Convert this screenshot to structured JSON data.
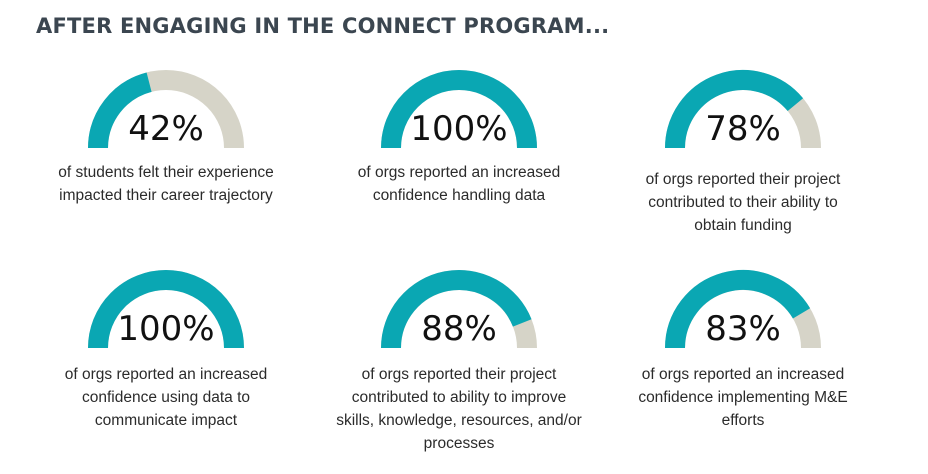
{
  "headline": "AFTER ENGAGING IN THE CONNECT PROGRAM...",
  "colors": {
    "filled": "#0aa7b3",
    "remaining": "#d6d4c8"
  },
  "chart_data": {
    "type": "gauge",
    "unit": "%",
    "max": 100,
    "gauges": [
      {
        "value": 42,
        "label": "42%",
        "caption": "of students felt their experience impacted their career trajectory"
      },
      {
        "value": 100,
        "label": "100%",
        "caption": "of orgs reported an increased confidence handling data"
      },
      {
        "value": 78,
        "label": "78%",
        "caption": "of orgs reported their project contributed to their ability to obtain funding"
      },
      {
        "value": 100,
        "label": "100%",
        "caption": "of orgs reported an increased confidence using data to communicate impact"
      },
      {
        "value": 88,
        "label": "88%",
        "caption": "of orgs reported their project contributed to ability to improve skills, knowledge, resources, and/or processes"
      },
      {
        "value": 83,
        "label": "83%",
        "caption": "of orgs reported an increased confidence implementing M&E efforts"
      }
    ]
  }
}
